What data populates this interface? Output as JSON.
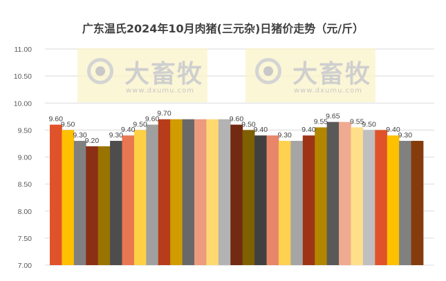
{
  "chart_data": {
    "type": "bar",
    "title": "广东温氏2024年10月肉猪(三元杂)日猪价走势（元/斤）",
    "ylim": [
      7.0,
      11.0
    ],
    "yticks": [
      "7.00",
      "7.50",
      "8.00",
      "8.50",
      "9.00",
      "9.50",
      "10.00",
      "10.50",
      "11.00"
    ],
    "grid": true,
    "values": [
      9.6,
      9.5,
      9.3,
      9.2,
      9.2,
      9.3,
      9.4,
      9.5,
      9.6,
      9.7,
      9.7,
      9.7,
      9.7,
      9.7,
      9.7,
      9.6,
      9.5,
      9.4,
      9.4,
      9.3,
      9.3,
      9.4,
      9.55,
      9.65,
      9.65,
      9.55,
      9.5,
      9.5,
      9.4,
      9.3,
      9.3
    ],
    "labels": [
      "9.60",
      "9.50",
      "9.30",
      "9.20",
      null,
      "9.30",
      "9.40",
      "9.50",
      "9.60",
      "9.70",
      null,
      null,
      null,
      null,
      null,
      "9.60",
      "9.50",
      "9.40",
      null,
      "9.30",
      null,
      "9.40",
      "9.55",
      "9.65",
      null,
      "9.55",
      "9.50",
      null,
      "9.40",
      "9.30",
      null
    ],
    "colors": [
      "#E0522A",
      "#FFC000",
      "#808080",
      "#8A3015",
      "#997300",
      "#4D4D4D",
      "#E97752",
      "#FFD044",
      "#A0A0A0",
      "#B73D1A",
      "#D09C00",
      "#686868",
      "#EC9B7E",
      "#FFD970",
      "#B3B3B3",
      "#722A12",
      "#7F6000",
      "#404040",
      "#E8866A",
      "#FFD150",
      "#A5A5A5",
      "#9E3416",
      "#B38600",
      "#595959",
      "#F0AA92",
      "#FFDF8A",
      "#BFBFBF",
      "#E0522A",
      "#FFC000",
      "#808080",
      "#843C0C"
    ]
  },
  "watermark": {
    "brand": "大畜牧",
    "url": "www.dxumu.com"
  }
}
